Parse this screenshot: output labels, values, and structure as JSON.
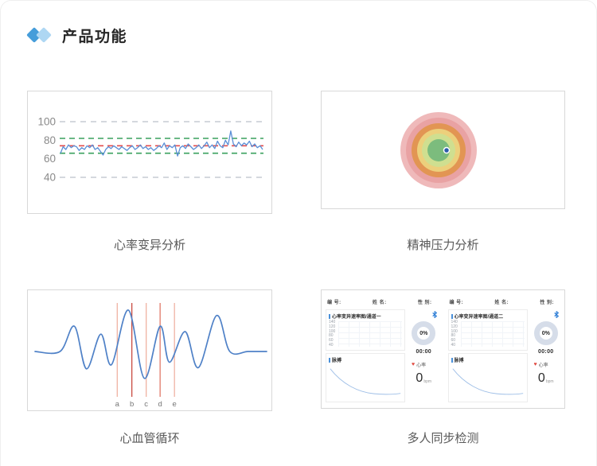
{
  "header": {
    "title": "产品功能"
  },
  "features": {
    "hrv": {
      "caption": "心率变异分析"
    },
    "stress": {
      "caption": "精神压力分析"
    },
    "cardio": {
      "caption": "心血管循环"
    },
    "multi": {
      "caption": "多人同步检测"
    }
  },
  "chart_data": [
    {
      "id": "hrv-variability",
      "type": "line",
      "title": "心率变异分析",
      "xlabel": "",
      "ylabel": "",
      "yticks": [
        100,
        80,
        60,
        40
      ],
      "ylim": [
        28,
        112
      ],
      "grid": "horizontal-dashed",
      "gridline_values": [
        100,
        40
      ],
      "gridline_color": "#c6cbd4",
      "reference_lines": [
        {
          "name": "upper-bound",
          "value": 82,
          "color": "#3aa05e",
          "style": "dashed"
        },
        {
          "name": "mean",
          "value": 74,
          "color": "#e34d4d",
          "style": "dashed"
        },
        {
          "name": "lower-bound",
          "value": 66,
          "color": "#3aa05e",
          "style": "dashed"
        }
      ],
      "series": [
        {
          "name": "heart-rate",
          "color": "#5a8ed6",
          "values": [
            66,
            73,
            70,
            75,
            72,
            74,
            73,
            69,
            72,
            70,
            74,
            72,
            75,
            70,
            72,
            68,
            64,
            70,
            73,
            71,
            74,
            72,
            70,
            73,
            71,
            69,
            72,
            74,
            70,
            72,
            75,
            71,
            73,
            70,
            72,
            69,
            71,
            74,
            72,
            77,
            70,
            74,
            72,
            75,
            63,
            72,
            74,
            71,
            76,
            73,
            70,
            72,
            75,
            71,
            74,
            78,
            72,
            75,
            71,
            79,
            74,
            72,
            80,
            75,
            90,
            76,
            73,
            78,
            74,
            77,
            75,
            79,
            73,
            76,
            72,
            74,
            70
          ]
        }
      ]
    },
    {
      "id": "stress-rings",
      "type": "rings",
      "title": "精神压力分析",
      "rings": [
        {
          "radius": 48,
          "color": "#efb9ba"
        },
        {
          "radius": 41,
          "color": "#e9a2a3"
        },
        {
          "radius": 34,
          "color": "#e29553"
        },
        {
          "radius": 27,
          "color": "#ecd07c"
        },
        {
          "radius": 21,
          "color": "#cfdf90"
        },
        {
          "radius": 14,
          "color": "#7cbc7d"
        }
      ],
      "marker": {
        "dx": 10,
        "dy": 0,
        "radius": 3.5,
        "color": "#2b5cab",
        "stroke": "#ffffff"
      }
    },
    {
      "id": "cardio-waveform",
      "type": "line",
      "title": "心血管循环",
      "color": "#4f81c7",
      "baseline": 0,
      "points": [
        [
          0,
          0
        ],
        [
          0.108,
          0
        ],
        [
          0.17,
          0.61
        ],
        [
          0.222,
          -0.42
        ],
        [
          0.284,
          0.42
        ],
        [
          0.33,
          -0.32
        ],
        [
          0.403,
          1.0
        ],
        [
          0.472,
          -0.65
        ],
        [
          0.54,
          0.61
        ],
        [
          0.58,
          -0.26
        ],
        [
          0.648,
          0.48
        ],
        [
          0.705,
          -0.39
        ],
        [
          0.784,
          0.87
        ],
        [
          0.841,
          0
        ],
        [
          0.92,
          0
        ],
        [
          1,
          0
        ]
      ],
      "markers": [
        {
          "x": 0.355,
          "label": "a",
          "color": "#f0b2a2"
        },
        {
          "x": 0.418,
          "label": "b",
          "color": "#c84a40"
        },
        {
          "x": 0.48,
          "label": "c",
          "color": "#f0b2a2"
        },
        {
          "x": 0.54,
          "label": "d",
          "color": "#e07767"
        },
        {
          "x": 0.602,
          "label": "e",
          "color": "#f0b2a2"
        }
      ]
    }
  ],
  "dashboard": {
    "channels": [
      {
        "id_label": "编 号:",
        "name_label": "姓 名:",
        "gender_label": "性 别:",
        "chart_title": "心率变异速率图/通道一",
        "yticks": [
          140,
          120,
          100,
          80,
          60,
          40
        ],
        "percent": "0%",
        "timer": "00:00",
        "pulse_label": "脉搏",
        "hr_label": "心率",
        "hr_value": "0",
        "hr_unit": "bpm"
      },
      {
        "id_label": "编 号:",
        "name_label": "姓 名:",
        "gender_label": "性 别:",
        "chart_title": "心率变异速率图/通道二",
        "yticks": [
          140,
          120,
          100,
          80,
          60,
          40
        ],
        "percent": "0%",
        "timer": "00:00",
        "pulse_label": "脉搏",
        "hr_label": "心率",
        "hr_value": "0",
        "hr_unit": "bpm"
      }
    ]
  },
  "colors": {
    "accent_blue": "#469dda",
    "accent_blue_light": "#aed7f3",
    "panel_border": "#d8d8d8",
    "donut_ring": "#d6dde9",
    "heart_red": "#e0483f"
  }
}
